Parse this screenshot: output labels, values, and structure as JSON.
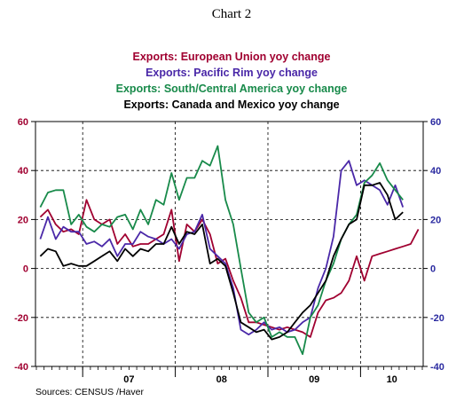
{
  "chart_data": {
    "type": "line",
    "title": "Chart 2",
    "source": "Sources:  CENSUS /Haver",
    "y_left": {
      "ylim": [
        -40,
        60
      ],
      "ticks": [
        "60",
        "40",
        "20",
        "0",
        "-20",
        "-40"
      ],
      "color": "#a00030"
    },
    "y_right": {
      "ylim": [
        -40,
        60
      ],
      "ticks": [
        "60",
        "40",
        "20",
        "0",
        "-20",
        "-40"
      ],
      "color": "#2a2aa0"
    },
    "x": {
      "start": "2006-07",
      "categories": [
        "07",
        "08",
        "09",
        "10"
      ],
      "year_boundaries": [
        "2007-01",
        "2008-01",
        "2009-01",
        "2010-01"
      ]
    },
    "grid": true,
    "series": [
      {
        "name": "Exports:  European Union    yoy change",
        "color": "#a00030",
        "values": [
          21,
          24,
          18,
          15,
          16,
          14,
          28,
          20,
          18,
          20,
          10,
          14,
          9,
          10,
          10,
          12,
          14,
          24,
          3,
          18,
          15,
          20,
          14,
          2,
          4,
          -5,
          -12,
          -22,
          -22,
          -23,
          -24,
          -25,
          -24,
          -25,
          -26,
          -28,
          -18,
          -13,
          -12,
          -10,
          -5,
          5,
          -5,
          5,
          6,
          7,
          8,
          9,
          10,
          16
        ]
      },
      {
        "name": "Exports:  Pacific Rim    yoy change",
        "color": "#4a28a8",
        "values": [
          12,
          21,
          12,
          17,
          15,
          15,
          10,
          11,
          9,
          12,
          5,
          10,
          10,
          15,
          13,
          12,
          10,
          12,
          8,
          14,
          15,
          22,
          8,
          5,
          2,
          -8,
          -25,
          -27,
          -25,
          -22,
          -25,
          -24,
          -26,
          -25,
          -22,
          -20,
          -8,
          0,
          13,
          40,
          44,
          34,
          36,
          34,
          32,
          26,
          34,
          25
        ]
      },
      {
        "name": "Exports:  South/Central America    yoy change",
        "color": "#188a4a",
        "values": [
          25,
          31,
          32,
          32,
          18,
          22,
          17,
          15,
          18,
          17,
          21,
          22,
          16,
          24,
          18,
          28,
          26,
          39,
          28,
          37,
          37,
          44,
          42,
          50,
          28,
          18,
          0,
          -18,
          -22,
          -20,
          -28,
          -26,
          -28,
          -28,
          -35,
          -20,
          -15,
          -5,
          2,
          12,
          18,
          22,
          35,
          38,
          43,
          36,
          32,
          28
        ]
      },
      {
        "name": "Exports:  Canada and Mexico     yoy change",
        "color": "#000000",
        "values": [
          5,
          8,
          7,
          1,
          2,
          1,
          1,
          3,
          5,
          7,
          3,
          8,
          5,
          8,
          7,
          10,
          10,
          17,
          10,
          15,
          14,
          18,
          2,
          4,
          1,
          -10,
          -22,
          -24,
          -26,
          -25,
          -29,
          -28,
          -26,
          -22,
          -18,
          -15,
          -10,
          -5,
          5,
          12,
          18,
          20,
          34,
          34,
          35,
          30,
          20,
          23
        ]
      }
    ]
  }
}
